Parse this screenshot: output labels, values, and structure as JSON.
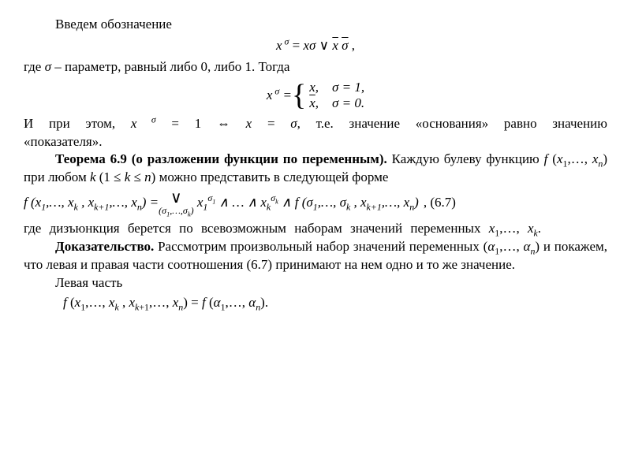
{
  "p1": "Введем обозначение",
  "eq1_html": "<i>x<sup>&nbsp;σ</sup></i> = <i>xσ</i> ∨ <span class='ov'><i>x</i></span>&nbsp;<span class='ov'><i>σ</i></span> ,",
  "p2_html": "где <i>σ</i> – параметр, равный либо 0, либо 1. Тогда",
  "eq2_lhs": "x<sup>&nbsp;σ</sup> = ",
  "eq2_case1": "x,&nbsp;&nbsp;&nbsp;&nbsp;σ = 1,",
  "eq2_case2": "<span class='ov'>x</span>,&nbsp;&nbsp;&nbsp;&nbsp;σ = 0.",
  "p3_html": "И при этом, <i>x<sup>&nbsp;σ</sup></i>&nbsp;=&nbsp;1 ⇔ <i>x</i>&nbsp;=&nbsp;<i>σ</i>, т.е. значение «основания» равно значению «показателя».",
  "p4_html": "<b>Теорема 6.9 (о разложении функции по переменным).</b> Каждую булеву функцию <i>f</i> (<i>x</i><sub>1</sub>,…, <i>x</i><sub><i>n</i></sub>) при любом <i>k</i> (1 ≤ <i>k</i> ≤ <i>n</i>) можно представить в следующей форме",
  "eq3_lhs": "f (x<sub>1</sub>,…, x<sub>k</sub> , x<sub>k+1</sub>,…, x<sub>n</sub>) = ",
  "eq3_disj_top": "∨",
  "eq3_disj_bot": "(σ<sub>1</sub>,…,σ<sub>k</sub>)",
  "eq3_rhs": "&nbsp;x<sub>1</sub><sup>σ<sub>1</sub></sup> ∧ … ∧ x<sub>k</sub><sup>σ<sub>k</sub></sup> ∧ f (σ<sub>1</sub>,…, σ<sub>k</sub> , x<sub>k+1</sub>,…, x<sub>n</sub>)",
  "eq3_num": ", (6.7)",
  "p5_html": "где дизъюнкция берется по всевозможным наборам значений переменных <i>x</i><sub>1</sub>,…, <i>x</i><sub><i>k</i></sub>.",
  "p6_html": "<b>Доказательство.</b> Рассмотрим произвольный набор значений переменных (<i>α</i><sub>1</sub>,…, <i>α</i><sub><i>n</i></sub>) и покажем, что левая и правая части соотношения (6.7) принимают на нем одно и то же значение.",
  "p7": "Левая часть",
  "eq4_html": "<i>f</i> (<i>x</i><sub>1</sub>,…, <i>x</i><sub><i>k</i></sub> , <i>x</i><sub><i>k</i>+1</sub>,…, <i>x</i><sub><i>n</i></sub>) = <i>f</i> (<i>α</i><sub>1</sub>,…, <i>α</i><sub><i>n</i></sub>)."
}
